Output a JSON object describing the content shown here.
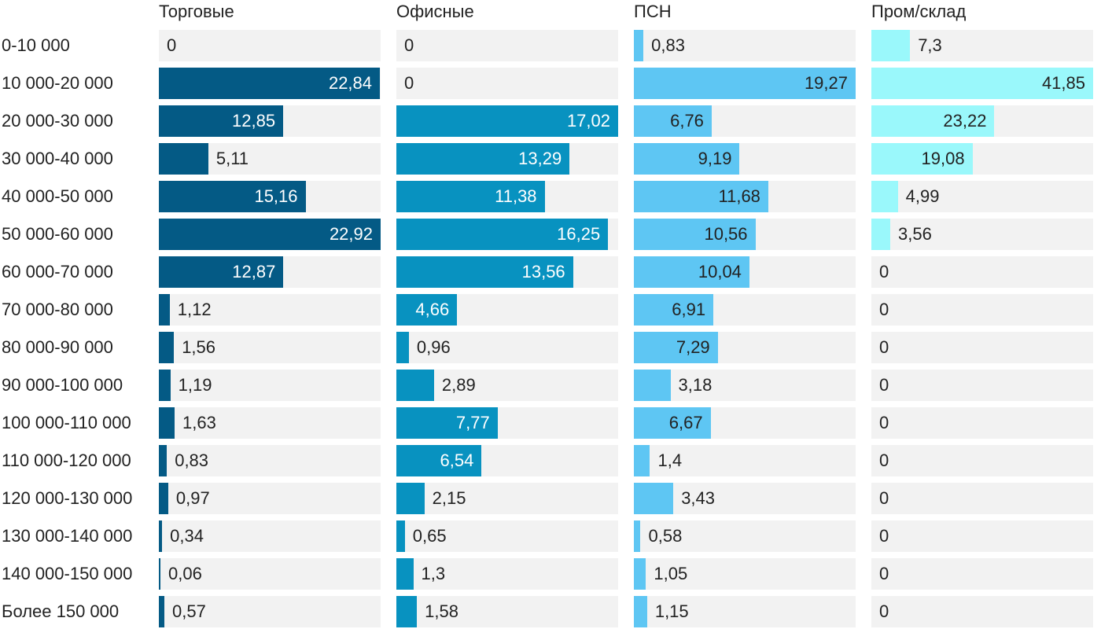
{
  "chart_data": {
    "type": "bar",
    "orientation": "horizontal",
    "layout": "small-multiples",
    "categories": [
      "0-10 000",
      "10 000-20 000",
      "20 000-30 000",
      "30 000-40 000",
      "40 000-50 000",
      "50 000-60 000",
      "60 000-70 000",
      "70 000-80 000",
      "80 000-90 000",
      "90 000-100 000",
      "100 000-110 000",
      "110 000-120 000",
      "120 000-130 000",
      "130 000-140 000",
      "140 000-150 000",
      "Более 150 000"
    ],
    "series": [
      {
        "name": "Торговые",
        "color": "#045a85",
        "xlim": [
          0,
          22.92
        ],
        "values": [
          0,
          22.84,
          12.85,
          5.11,
          15.16,
          22.92,
          12.87,
          1.12,
          1.56,
          1.19,
          1.63,
          0.83,
          0.97,
          0.34,
          0.06,
          0.57
        ],
        "labels": [
          "0",
          "22,84",
          "12,85",
          "5,11",
          "15,16",
          "22,92",
          "12,87",
          "1,12",
          "1,56",
          "1,19",
          "1,63",
          "0,83",
          "0,97",
          "0,34",
          "0,06",
          "0,57"
        ]
      },
      {
        "name": "Офисные",
        "color": "#0892c0",
        "xlim": [
          0,
          17.02
        ],
        "values": [
          0,
          0,
          17.02,
          13.29,
          11.38,
          16.25,
          13.56,
          4.66,
          0.96,
          2.89,
          7.77,
          6.54,
          2.15,
          0.65,
          1.3,
          1.58
        ],
        "labels": [
          "0",
          "0",
          "17,02",
          "13,29",
          "11,38",
          "16,25",
          "13,56",
          "4,66",
          "0,96",
          "2,89",
          "7,77",
          "6,54",
          "2,15",
          "0,65",
          "1,3",
          "1,58"
        ]
      },
      {
        "name": "ПСН",
        "color": "#5ec6f3",
        "xlim": [
          0,
          19.27
        ],
        "values": [
          0.83,
          19.27,
          6.76,
          9.19,
          11.68,
          10.56,
          10.04,
          6.91,
          7.29,
          3.18,
          6.67,
          1.4,
          3.43,
          0.58,
          1.05,
          1.15
        ],
        "labels": [
          "0,83",
          "19,27",
          "6,76",
          "9,19",
          "11,68",
          "10,56",
          "10,04",
          "6,91",
          "7,29",
          "3,18",
          "6,67",
          "1,4",
          "3,43",
          "0,58",
          "1,05",
          "1,15"
        ]
      },
      {
        "name": "Пром/склад",
        "color": "#9af8fb",
        "xlim": [
          0,
          41.85
        ],
        "values": [
          7.3,
          41.85,
          23.22,
          19.08,
          4.99,
          3.56,
          0,
          0,
          0,
          0,
          0,
          0,
          0,
          0,
          0,
          0
        ],
        "labels": [
          "7,3",
          "41,85",
          "23,22",
          "19,08",
          "4,99",
          "3,56",
          "0",
          "0",
          "0",
          "0",
          "0",
          "0",
          "0",
          "0",
          "0",
          "0"
        ]
      }
    ],
    "inside_label_colors": [
      "#ffffff",
      "#ffffff",
      "#222222",
      "#222222"
    ],
    "track_color": "#f2f2f2"
  }
}
